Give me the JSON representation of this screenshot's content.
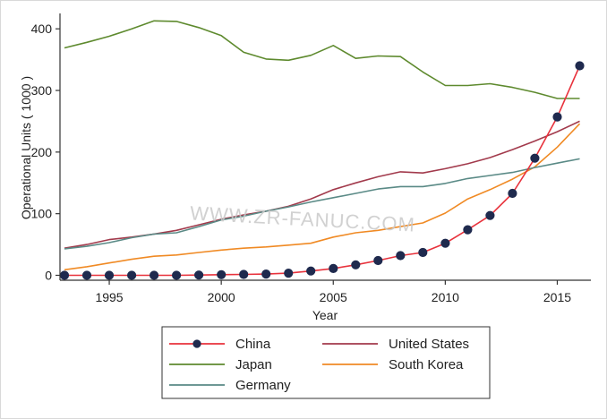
{
  "chart_data": {
    "type": "line",
    "xlabel": "Year",
    "ylabel": "Operational Units ( 1000 )",
    "xlim": [
      1992.8,
      2016.5
    ],
    "ylim": [
      -8,
      425
    ],
    "xticks": [
      "1995",
      "2000",
      "2005",
      "2010",
      "2015"
    ],
    "yticks": [
      "0",
      "100",
      "200",
      "300",
      "400"
    ],
    "grid": false,
    "legend_position": "bottom",
    "watermark": "WWW.ZR-FANUC.COM",
    "x": [
      1993,
      1994,
      1995,
      1996,
      1997,
      1998,
      1999,
      2000,
      2001,
      2002,
      2003,
      2004,
      2005,
      2006,
      2007,
      2008,
      2009,
      2010,
      2011,
      2012,
      2013,
      2014,
      2015,
      2016
    ],
    "series": [
      {
        "name": "China",
        "color": "#e8323c",
        "marker": "circle",
        "marker_color": "#1f2a4e",
        "values": [
          0,
          0,
          0,
          0,
          0,
          0,
          0.5,
          1,
          1.5,
          2,
          3.5,
          7,
          11,
          17,
          24,
          32,
          37,
          52,
          74,
          97,
          133,
          190,
          257,
          340
        ]
      },
      {
        "name": "United States",
        "color": "#a23a4c",
        "values": [
          44,
          50,
          58,
          62,
          67,
          73,
          82,
          91,
          98,
          104,
          112,
          124,
          139,
          150,
          160,
          168,
          166,
          173,
          181,
          191,
          204,
          218,
          233,
          250
        ]
      },
      {
        "name": "Japan",
        "color": "#5e8a2e",
        "values": [
          369,
          378,
          388,
          400,
          413,
          412,
          402,
          389,
          362,
          351,
          349,
          357,
          373,
          352,
          356,
          355,
          330,
          308,
          308,
          311,
          305,
          297,
          287,
          287
        ]
      },
      {
        "name": "South Korea",
        "color": "#f08a24",
        "values": [
          9,
          14,
          20,
          26,
          31,
          33,
          37,
          41,
          44,
          46,
          49,
          52,
          62,
          69,
          73,
          79,
          85,
          101,
          124,
          139,
          156,
          176,
          208,
          246
        ]
      },
      {
        "name": "Germany",
        "color": "#5a8a86",
        "values": [
          43,
          47,
          53,
          61,
          67,
          69,
          79,
          90,
          96,
          104,
          111,
          119,
          126,
          133,
          140,
          144,
          144,
          149,
          157,
          162,
          167,
          175,
          182,
          189
        ]
      }
    ]
  }
}
